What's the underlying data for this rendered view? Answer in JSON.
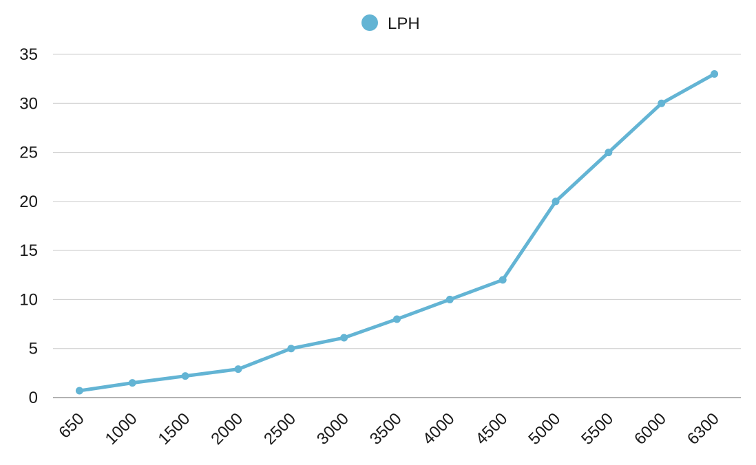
{
  "chart_data": {
    "type": "line",
    "title": "",
    "xlabel": "",
    "ylabel": "",
    "categories": [
      "650",
      "1000",
      "1500",
      "2000",
      "2500",
      "3000",
      "3500",
      "4000",
      "4500",
      "5000",
      "5500",
      "6000",
      "6300"
    ],
    "series": [
      {
        "name": "LPH",
        "color": "#63b4d4",
        "values": [
          0.7,
          1.5,
          2.2,
          2.9,
          5,
          6.1,
          8,
          10,
          12,
          20,
          25,
          30,
          33
        ]
      }
    ],
    "ylim": [
      0,
      35
    ],
    "yticks": [
      0,
      5,
      10,
      15,
      20,
      25,
      30,
      35
    ],
    "grid": true,
    "legend_position": "top-center",
    "gridline_color": "#cccccc",
    "axis_color": "#999999"
  }
}
